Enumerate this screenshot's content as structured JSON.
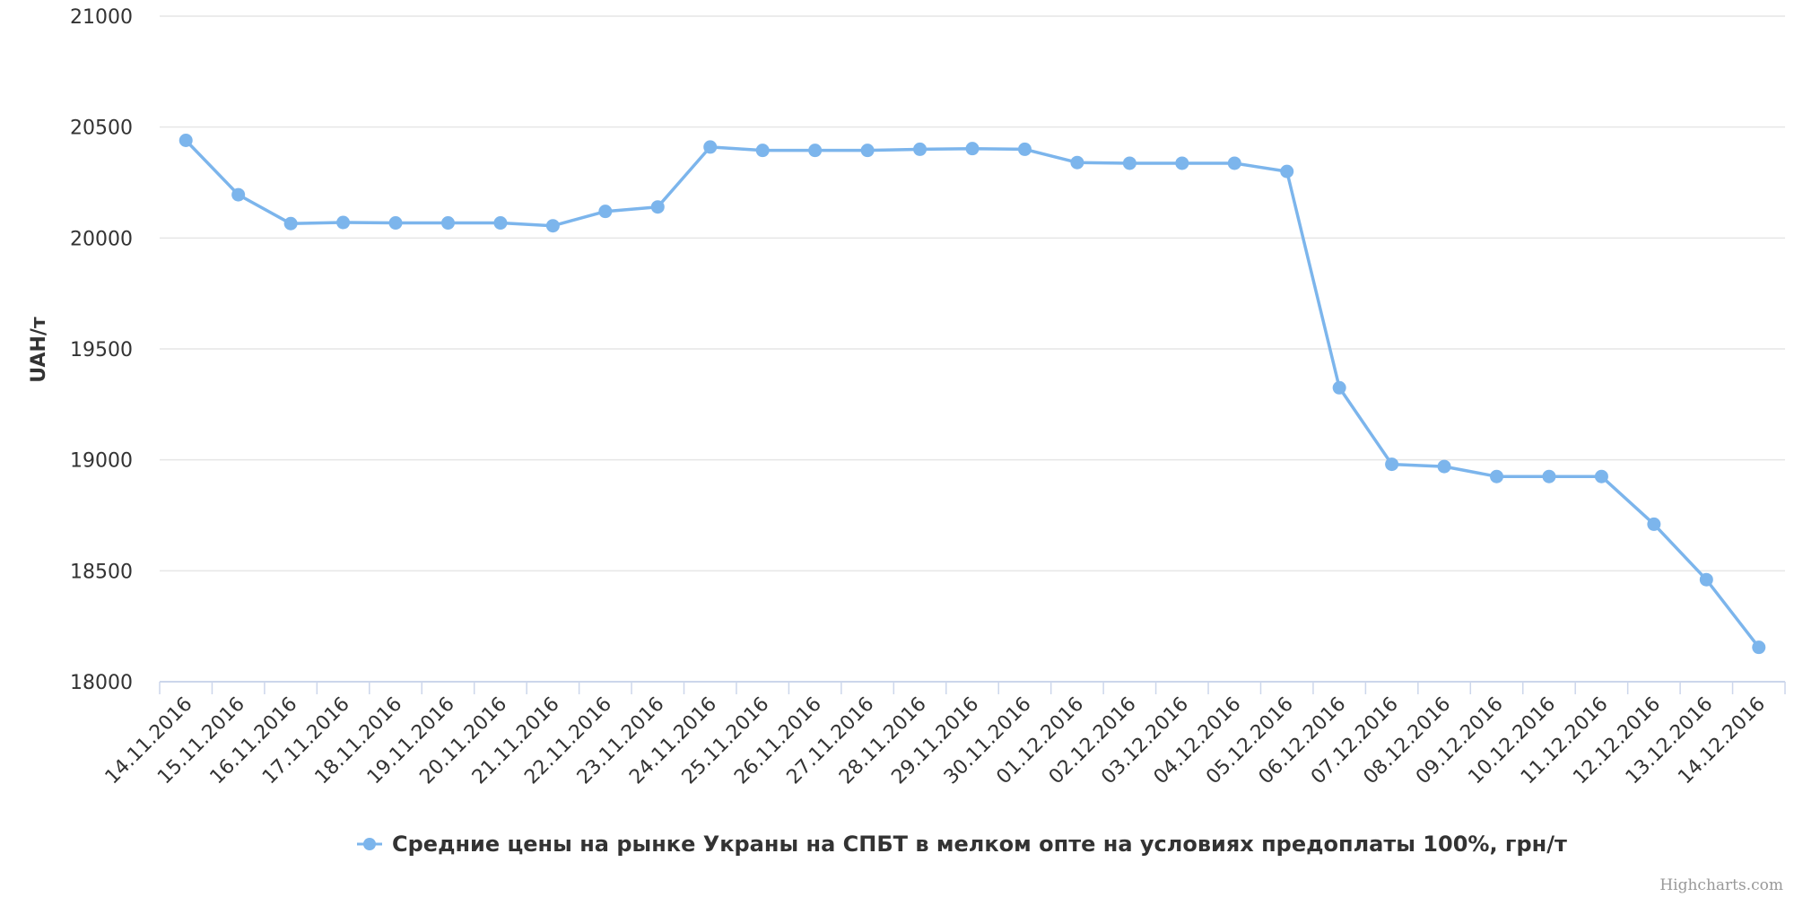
{
  "chart_data": {
    "type": "line",
    "title": "",
    "xlabel": "",
    "ylabel": "UAH/т",
    "ylim": [
      18000,
      21000
    ],
    "yticks": [
      "18000",
      "18500",
      "19000",
      "19500",
      "20000",
      "20500",
      "21000"
    ],
    "grid": true,
    "legend_position": "bottom-center",
    "categories": [
      "14.11.2016",
      "15.11.2016",
      "16.11.2016",
      "17.11.2016",
      "18.11.2016",
      "19.11.2016",
      "20.11.2016",
      "21.11.2016",
      "22.11.2016",
      "23.11.2016",
      "24.11.2016",
      "25.11.2016",
      "26.11.2016",
      "27.11.2016",
      "28.11.2016",
      "29.11.2016",
      "30.11.2016",
      "01.12.2016",
      "02.12.2016",
      "03.12.2016",
      "04.12.2016",
      "05.12.2016",
      "06.12.2016",
      "07.12.2016",
      "08.12.2016",
      "09.12.2016",
      "10.12.2016",
      "11.12.2016",
      "12.12.2016",
      "13.12.2016",
      "14.12.2016"
    ],
    "series": [
      {
        "name": "Средние цены на рынке Украны на СПБТ в мелком опте на условиях предоплаты 100%, грн/т",
        "color": "#7cb5ec",
        "values": [
          20440,
          20195,
          20065,
          20070,
          20068,
          20068,
          20068,
          20055,
          20120,
          20140,
          20410,
          20395,
          20395,
          20395,
          20400,
          20403,
          20400,
          20340,
          20337,
          20337,
          20337,
          20300,
          19325,
          18980,
          18970,
          18925,
          18925,
          18925,
          18710,
          18460,
          18155
        ]
      }
    ]
  },
  "credit": "Highcharts.com",
  "colors": {
    "grid": "#e6e6e6",
    "axis": "#ccd6eb",
    "text": "#333333",
    "credit": "#999999"
  }
}
